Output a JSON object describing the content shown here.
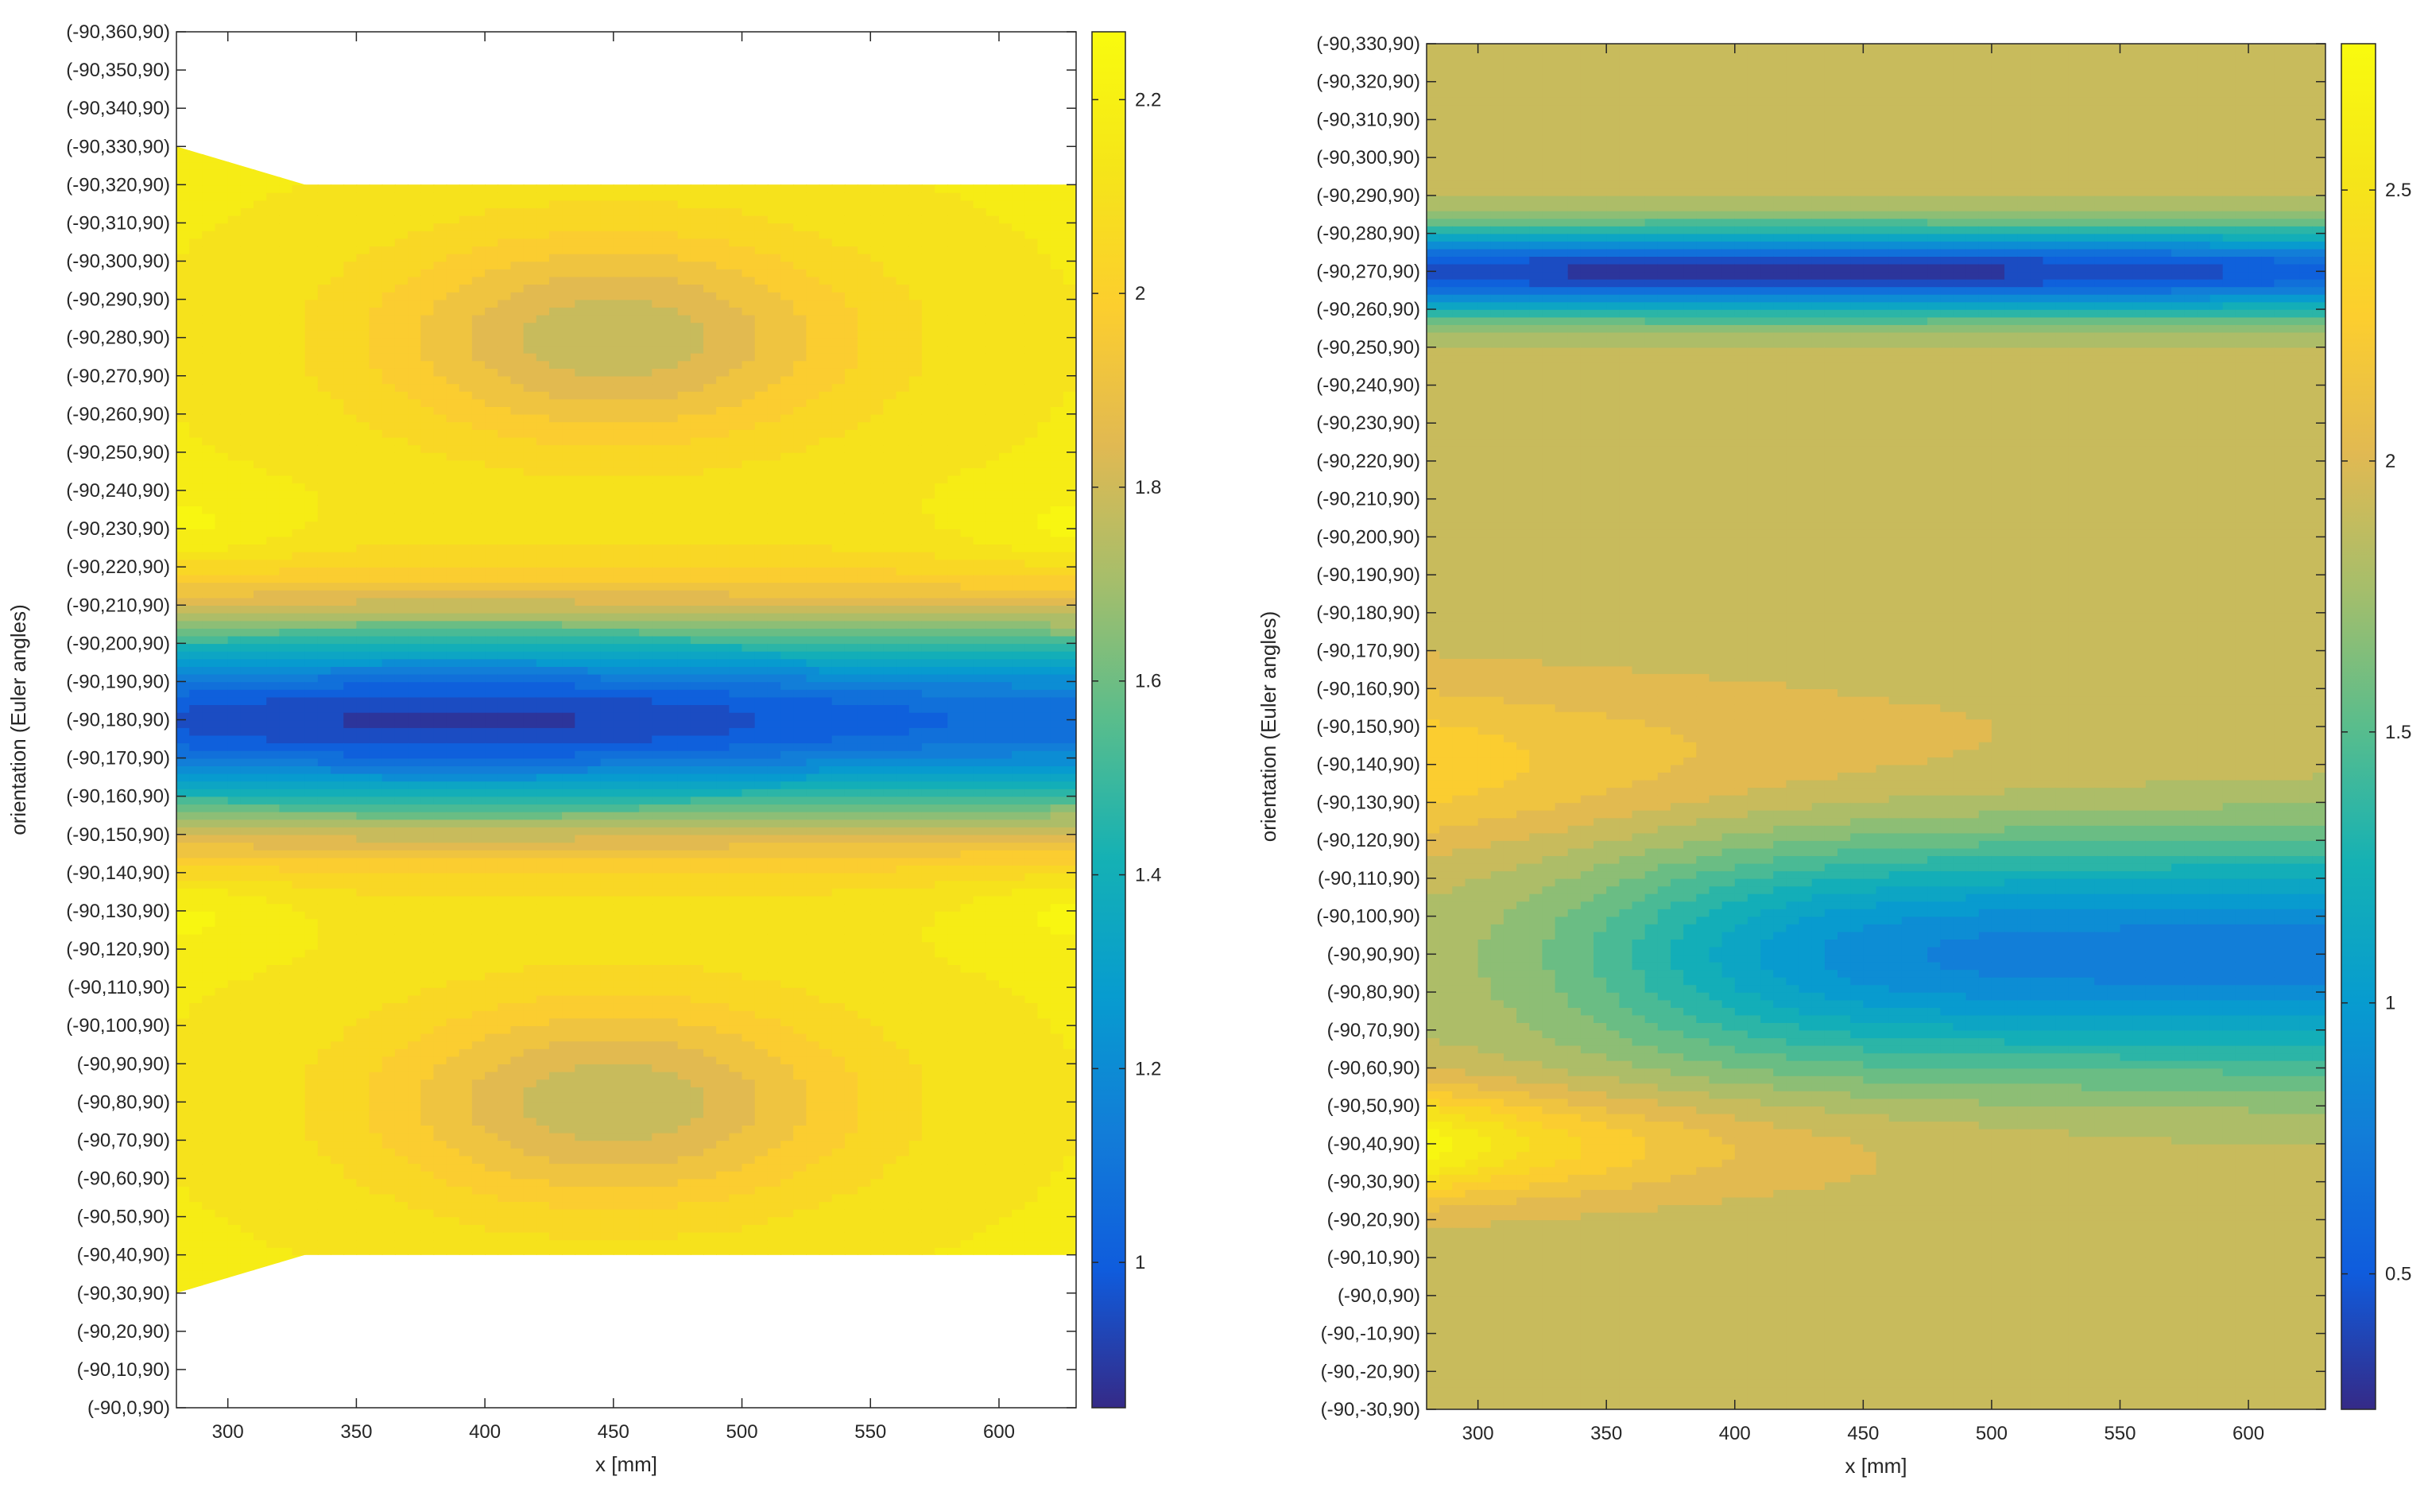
{
  "chart_data": [
    {
      "type": "heatmap",
      "subtype": "filled-contour",
      "title": "",
      "xlabel": "x [mm]",
      "ylabel": "orientation (Euler angles)",
      "xlim": [
        280,
        630
      ],
      "ylim": [
        0,
        360
      ],
      "x_ticks": [
        300,
        350,
        400,
        450,
        500,
        550,
        600
      ],
      "x_tick_labels": [
        "300",
        "350",
        "400",
        "450",
        "500",
        "550",
        "600"
      ],
      "y_ticks": [
        0,
        10,
        20,
        30,
        40,
        50,
        60,
        70,
        80,
        90,
        100,
        110,
        120,
        130,
        140,
        150,
        160,
        170,
        180,
        190,
        200,
        210,
        220,
        230,
        240,
        250,
        260,
        270,
        280,
        290,
        300,
        310,
        320,
        330,
        340,
        350,
        360
      ],
      "y_tick_labels": [
        "(-90,0,90)",
        "(-90,10,90)",
        "(-90,20,90)",
        "(-90,30,90)",
        "(-90,40,90)",
        "(-90,50,90)",
        "(-90,60,90)",
        "(-90,70,90)",
        "(-90,80,90)",
        "(-90,90,90)",
        "(-90,100,90)",
        "(-90,110,90)",
        "(-90,120,90)",
        "(-90,130,90)",
        "(-90,140,90)",
        "(-90,150,90)",
        "(-90,160,90)",
        "(-90,170,90)",
        "(-90,180,90)",
        "(-90,190,90)",
        "(-90,200,90)",
        "(-90,210,90)",
        "(-90,220,90)",
        "(-90,230,90)",
        "(-90,240,90)",
        "(-90,250,90)",
        "(-90,260,90)",
        "(-90,270,90)",
        "(-90,280,90)",
        "(-90,290,90)",
        "(-90,300,90)",
        "(-90,310,90)",
        "(-90,320,90)",
        "(-90,330,90)",
        "(-90,340,90)",
        "(-90,350,90)",
        "(-90,360,90)"
      ],
      "colorbar": {
        "range": [
          0.85,
          2.27
        ],
        "ticks": [
          1,
          1.2,
          1.4,
          1.6,
          1.8,
          2,
          2.2
        ],
        "tick_labels": [
          "1",
          "1.2",
          "1.4",
          "1.6",
          "1.8",
          "2",
          "2.2"
        ]
      },
      "data_extent": {
        "x_range": [
          280,
          630
        ],
        "y_range_at_x280": [
          30,
          330
        ],
        "y_range_other": [
          40,
          320
        ]
      },
      "bands": [
        {
          "y_center": 180,
          "min_value": 0.9,
          "max_value_nearby": 2.1,
          "x_of_min": 390
        },
        {
          "y_center": 80,
          "peak_value": 1.8,
          "x_of_peak": 450
        },
        {
          "y_center": 280,
          "peak_value": 1.8,
          "x_of_peak": 450
        },
        {
          "y_center": 130,
          "value": 2.2,
          "note": "yellow peaks at x edges"
        },
        {
          "y_center": 230,
          "value": 2.2,
          "note": "yellow peaks at x edges"
        }
      ]
    },
    {
      "type": "heatmap",
      "subtype": "filled-contour",
      "title": "",
      "xlabel": "x [mm]",
      "ylabel": "orientation (Euler angles)",
      "xlim": [
        280,
        630
      ],
      "ylim": [
        -30,
        330
      ],
      "x_ticks": [
        300,
        350,
        400,
        450,
        500,
        550,
        600
      ],
      "x_tick_labels": [
        "300",
        "350",
        "400",
        "450",
        "500",
        "550",
        "600"
      ],
      "y_ticks": [
        -30,
        -20,
        -10,
        0,
        10,
        20,
        30,
        40,
        50,
        60,
        70,
        80,
        90,
        100,
        110,
        120,
        130,
        140,
        150,
        160,
        170,
        180,
        190,
        200,
        210,
        220,
        230,
        240,
        250,
        260,
        270,
        280,
        290,
        300,
        310,
        320,
        330
      ],
      "y_tick_labels": [
        "(-90,-30,90)",
        "(-90,-20,90)",
        "(-90,-10,90)",
        "(-90,0,90)",
        "(-90,10,90)",
        "(-90,20,90)",
        "(-90,30,90)",
        "(-90,40,90)",
        "(-90,50,90)",
        "(-90,60,90)",
        "(-90,70,90)",
        "(-90,80,90)",
        "(-90,90,90)",
        "(-90,100,90)",
        "(-90,110,90)",
        "(-90,120,90)",
        "(-90,130,90)",
        "(-90,140,90)",
        "(-90,150,90)",
        "(-90,160,90)",
        "(-90,170,90)",
        "(-90,180,90)",
        "(-90,190,90)",
        "(-90,200,90)",
        "(-90,210,90)",
        "(-90,220,90)",
        "(-90,230,90)",
        "(-90,240,90)",
        "(-90,250,90)",
        "(-90,260,90)",
        "(-90,270,90)",
        "(-90,280,90)",
        "(-90,290,90)",
        "(-90,300,90)",
        "(-90,310,90)",
        "(-90,320,90)",
        "(-90,330,90)"
      ],
      "colorbar": {
        "range": [
          0.25,
          2.77
        ],
        "ticks": [
          0.5,
          1,
          1.5,
          2,
          2.5
        ],
        "tick_labels": [
          "0.5",
          "1",
          "1.5",
          "2",
          "2.5"
        ]
      },
      "background_value": 1.9,
      "bands": [
        {
          "y_center": 270,
          "min_value": 0.3
        },
        {
          "y_center": 90,
          "min_value": 0.75,
          "x_of_min": 630
        },
        {
          "y_center": 140,
          "value": 2.3
        },
        {
          "y_center": 40,
          "max_value": 2.75,
          "x_of_max": 280
        }
      ]
    }
  ]
}
